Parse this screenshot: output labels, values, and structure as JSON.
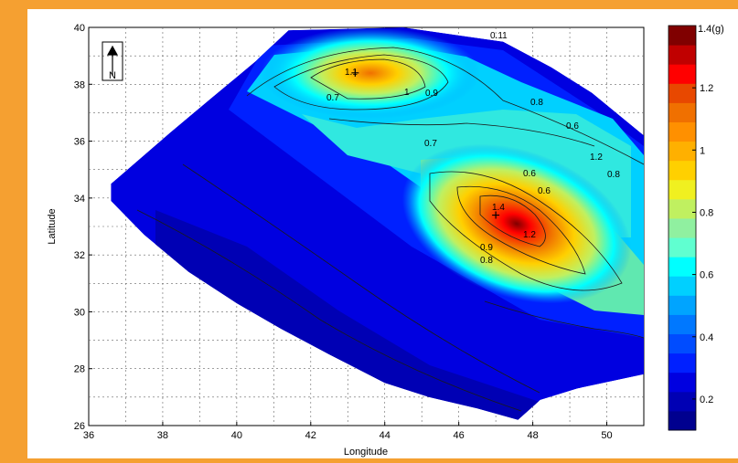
{
  "chart_data": {
    "type": "heatmap",
    "title": "",
    "xlabel": "Longitude",
    "ylabel": "Latitude",
    "xlim": [
      36,
      51
    ],
    "ylim": [
      26,
      40
    ],
    "xticks": [
      36,
      38,
      40,
      42,
      44,
      46,
      48,
      50
    ],
    "yticks": [
      26,
      28,
      30,
      32,
      34,
      36,
      38,
      40
    ],
    "grid": true,
    "colorbar": {
      "unit": "(g)",
      "top_label": "1.4(g)",
      "range": [
        0.1,
        1.4
      ],
      "ticks": [
        1.2,
        1,
        0.8,
        0.6,
        0.4,
        0.2
      ],
      "colors": [
        "#00008f",
        "#0000b4",
        "#0000e0",
        "#0020ff",
        "#004cff",
        "#0078ff",
        "#00a4ff",
        "#00d0ff",
        "#00ffff",
        "#60ffd0",
        "#90f0a0",
        "#c0f060",
        "#f0f020",
        "#ffd000",
        "#ffb000",
        "#ff9000",
        "#f07000",
        "#e84800",
        "#ff0000",
        "#c00000",
        "#800000"
      ]
    },
    "north_arrow": "N",
    "contour_labels": [
      "0.11",
      "1.1",
      "1",
      "0.9",
      "0.7",
      "0.8",
      "0.6",
      "0.7",
      "1.2",
      "0.6",
      "0.8",
      "0.6",
      "1.4",
      "1.2",
      "0.9",
      "0.8"
    ],
    "peaks": [
      {
        "lon": 43.2,
        "lat": 38.4,
        "value": 1.1
      },
      {
        "lon": 47.0,
        "lat": 33.4,
        "value": 1.4
      }
    ],
    "region_polygon": [
      [
        36.6,
        34.5
      ],
      [
        38.2,
        36.3
      ],
      [
        39.3,
        37.5
      ],
      [
        40.5,
        38.8
      ],
      [
        41.4,
        39.9
      ],
      [
        44.5,
        40.0
      ],
      [
        47.2,
        39.5
      ],
      [
        48.5,
        38.6
      ],
      [
        49.6,
        37.7
      ],
      [
        51.0,
        36.2
      ],
      [
        51.0,
        27.8
      ],
      [
        49.2,
        27.3
      ],
      [
        48.2,
        26.9
      ],
      [
        47.6,
        26.2
      ],
      [
        46.5,
        26.6
      ],
      [
        45.2,
        27.0
      ],
      [
        44.0,
        27.5
      ],
      [
        42.5,
        28.5
      ],
      [
        41.2,
        29.4
      ],
      [
        40.0,
        30.3
      ],
      [
        38.7,
        31.4
      ],
      [
        37.5,
        32.7
      ],
      [
        36.6,
        33.9
      ]
    ]
  }
}
